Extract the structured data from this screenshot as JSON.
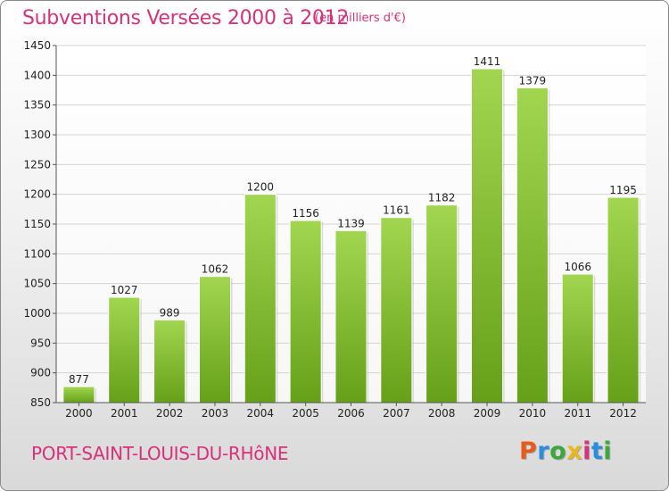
{
  "header": {
    "title": "Subventions Versées 2000 à 2012",
    "subtitle": "(en milliers d'€)"
  },
  "footer": {
    "city": "PORT-SAINT-LOUIS-DU-RHôNE",
    "logo": "Proxiti",
    "logo_colors": [
      "#e85a1c",
      "#2a8de0",
      "#3aa83a",
      "#e8b81c",
      "#d8307a",
      "#2a8de0",
      "#3aa83a"
    ]
  },
  "chart_data": {
    "type": "bar",
    "title": "Subventions Versées 2000 à 2012",
    "subtitle": "(en milliers d'€)",
    "xlabel": "",
    "ylabel": "",
    "categories": [
      "2000",
      "2001",
      "2002",
      "2003",
      "2004",
      "2005",
      "2006",
      "2007",
      "2008",
      "2009",
      "2010",
      "2011",
      "2012"
    ],
    "values": [
      877,
      1027,
      989,
      1062,
      1200,
      1156,
      1139,
      1161,
      1182,
      1411,
      1379,
      1066,
      1195
    ],
    "ylim": [
      850,
      1450
    ],
    "yticks": [
      850,
      900,
      950,
      1000,
      1050,
      1100,
      1150,
      1200,
      1250,
      1300,
      1350,
      1400,
      1450
    ],
    "grid": true,
    "legend": "none",
    "colors": {
      "bar_light": "#a2d651",
      "bar_dark": "#66a019",
      "grid": "#d4d4d4",
      "axis": "#555555"
    }
  }
}
